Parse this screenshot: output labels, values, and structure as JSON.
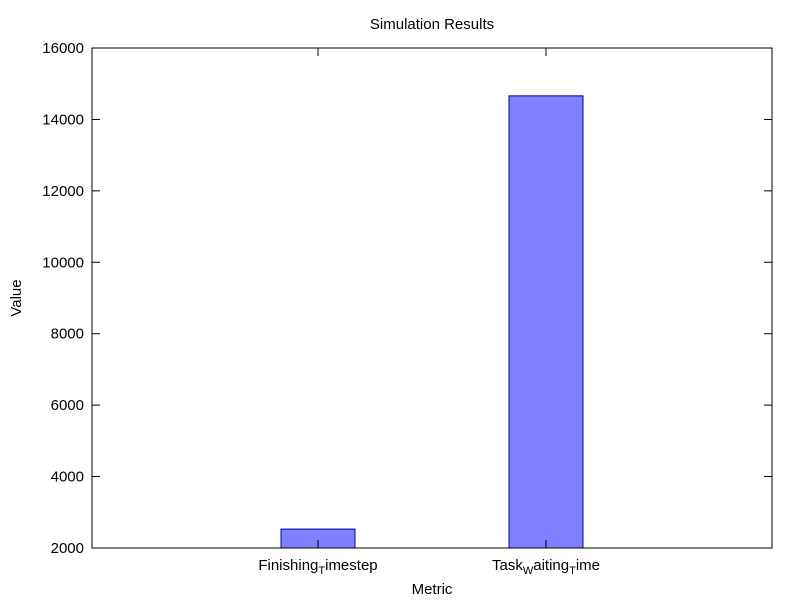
{
  "chart_data": {
    "type": "bar",
    "title": "Simulation Results",
    "xlabel": "Metric",
    "ylabel": "Value",
    "ylim": [
      2000,
      16000
    ],
    "yticks": [
      2000,
      4000,
      6000,
      8000,
      10000,
      12000,
      14000,
      16000
    ],
    "ytick_labels": [
      "2000",
      "4000",
      "6000",
      "8000",
      "10000",
      "12000",
      "14000",
      "16000"
    ],
    "categories": [
      {
        "base": "Finishing",
        "sub": "T",
        "rest": "imestep"
      },
      {
        "base": "Task",
        "sub": "W",
        "rest": "aiting",
        "sub2": "T",
        "rest2": "ime"
      }
    ],
    "values": [
      2530,
      14660
    ],
    "grid": false,
    "legend": "none",
    "colors": {
      "bar_fill": "#8080ff",
      "bar_stroke": "#00009a",
      "axis": "#000000",
      "background": "#ffffff"
    }
  }
}
